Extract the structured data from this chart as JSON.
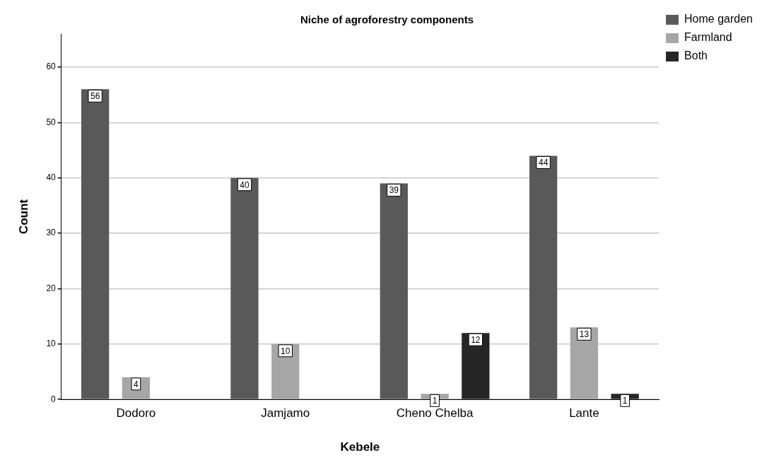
{
  "chart_data": {
    "type": "bar",
    "title": "Niche of agroforestry components",
    "xlabel": "Kebele",
    "ylabel": "Count",
    "categories": [
      "Dodoro",
      "Jamjamo",
      "Cheno Chelba",
      "Lante"
    ],
    "series": [
      {
        "name": "Home garden",
        "color": "#595959",
        "values": [
          56,
          40,
          39,
          44
        ]
      },
      {
        "name": "Farmland",
        "color": "#a6a6a6",
        "values": [
          4,
          10,
          1,
          13
        ]
      },
      {
        "name": "Both",
        "color": "#262626",
        "values": [
          null,
          null,
          12,
          1
        ]
      }
    ],
    "ylim": [
      0,
      66
    ],
    "yticks": [
      0,
      10,
      20,
      30,
      40,
      50,
      60
    ],
    "grid": "y",
    "legend": "right",
    "data_labels": true
  }
}
